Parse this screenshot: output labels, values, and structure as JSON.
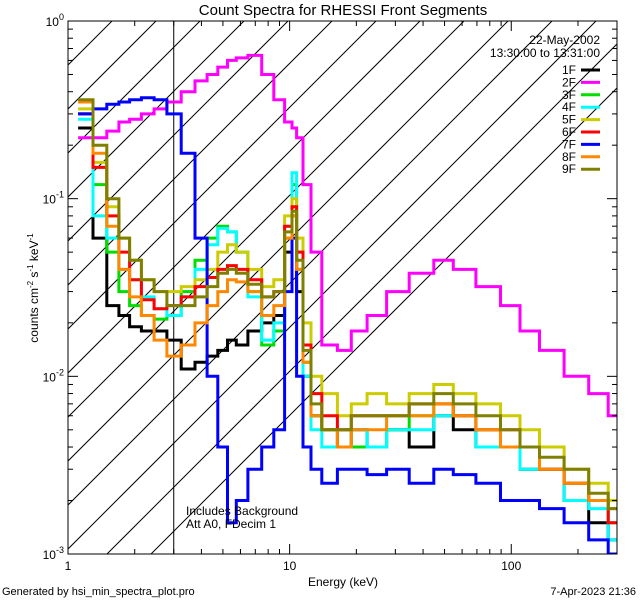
{
  "chart_data": {
    "type": "line",
    "title": "Count Spectra for RHESSI Front Segments",
    "xlabel": "Energy (keV)",
    "ylabel_parts": [
      "counts cm",
      "-2",
      " s",
      "-1",
      " keV",
      "-1"
    ],
    "xscale": "log",
    "yscale": "log",
    "xlim": [
      1,
      300
    ],
    "ylim": [
      0.001,
      1
    ],
    "x_ticks": [
      {
        "value": 1,
        "label": "1"
      },
      {
        "value": 10,
        "label": "10"
      },
      {
        "value": 100,
        "label": "100"
      }
    ],
    "y_ticks": [
      {
        "value": 1,
        "base": "10",
        "exp": "0"
      },
      {
        "value": 0.1,
        "base": "10",
        "exp": "-1"
      },
      {
        "value": 0.01,
        "base": "10",
        "exp": "-2"
      },
      {
        "value": 0.001,
        "base": "10",
        "exp": "-3"
      }
    ],
    "date": "22-May-2002",
    "time_range": "13:30:00 to 13:31:00",
    "attenuator_cutoff_keV": 3,
    "annotations": [
      "Includes Background",
      "Att A0, FDecim 1"
    ],
    "footer_left": "Generated by hsi_min_spectra_plot.pro",
    "footer_right": "7-Apr-2023 21:36",
    "series": [
      {
        "name": "1F",
        "color": "#000000",
        "x": [
          1.2,
          1.4,
          1.6,
          1.8,
          2.0,
          2.3,
          2.6,
          3.0,
          3.5,
          4.0,
          4.5,
          5.0,
          5.5,
          6.0,
          7.0,
          8.0,
          9.0,
          10.0,
          10.5,
          11.0,
          12.0,
          13.0,
          15.0,
          18.0,
          20.0,
          25.0,
          30.0,
          40.0,
          50.0,
          60.0,
          80.0,
          100.0,
          120.0,
          150.0,
          200.0,
          250.0,
          300.0
        ],
        "y": [
          0.25,
          0.06,
          0.025,
          0.022,
          0.019,
          0.018,
          0.018,
          0.016,
          0.011,
          0.012,
          0.013,
          0.014,
          0.016,
          0.015,
          0.018,
          0.02,
          0.022,
          0.05,
          0.08,
          0.03,
          0.01,
          0.006,
          0.005,
          0.004,
          0.005,
          0.004,
          0.005,
          0.004,
          0.006,
          0.005,
          0.004,
          0.004,
          0.003,
          0.003,
          0.002,
          0.0015,
          0.0012
        ]
      },
      {
        "name": "2F",
        "color": "#ff00ff",
        "x": [
          1.2,
          1.4,
          1.6,
          1.8,
          2.0,
          2.3,
          2.6,
          3.0,
          3.5,
          4.0,
          4.5,
          5.0,
          5.5,
          6.0,
          7.0,
          8.0,
          9.0,
          10.0,
          10.5,
          11.0,
          12.0,
          13.0,
          15.0,
          18.0,
          20.0,
          25.0,
          30.0,
          40.0,
          50.0,
          60.0,
          80.0,
          100.0,
          120.0,
          150.0,
          200.0,
          250.0,
          300.0
        ],
        "y": [
          0.22,
          0.22,
          0.24,
          0.27,
          0.28,
          0.3,
          0.32,
          0.35,
          0.4,
          0.46,
          0.5,
          0.55,
          0.6,
          0.62,
          0.64,
          0.5,
          0.36,
          0.27,
          0.25,
          0.22,
          0.12,
          0.05,
          0.015,
          0.014,
          0.018,
          0.022,
          0.03,
          0.038,
          0.045,
          0.04,
          0.032,
          0.025,
          0.018,
          0.014,
          0.01,
          0.008,
          0.006
        ]
      },
      {
        "name": "3F",
        "color": "#00dd00",
        "x": [
          1.2,
          1.4,
          1.6,
          1.8,
          2.0,
          2.3,
          2.6,
          3.0,
          3.5,
          4.0,
          4.5,
          5.0,
          5.5,
          6.0,
          7.0,
          8.0,
          9.0,
          10.0,
          10.5,
          11.0,
          12.0,
          13.0,
          15.0,
          18.0,
          20.0,
          25.0,
          30.0,
          40.0,
          50.0,
          60.0,
          80.0,
          100.0,
          120.0,
          150.0,
          200.0,
          250.0,
          300.0
        ],
        "y": [
          0.3,
          0.12,
          0.05,
          0.03,
          0.025,
          0.022,
          0.021,
          0.022,
          0.03,
          0.045,
          0.06,
          0.07,
          0.065,
          0.05,
          0.03,
          0.015,
          0.018,
          0.06,
          0.12,
          0.04,
          0.012,
          0.006,
          0.005,
          0.005,
          0.004,
          0.004,
          0.005,
          0.006,
          0.007,
          0.006,
          0.005,
          0.004,
          0.004,
          0.003,
          0.0025,
          0.002,
          0.0015
        ]
      },
      {
        "name": "4F",
        "color": "#00ffff",
        "x": [
          1.2,
          1.4,
          1.6,
          1.8,
          2.0,
          2.3,
          2.6,
          3.0,
          3.5,
          4.0,
          4.5,
          5.0,
          5.5,
          6.0,
          7.0,
          8.0,
          9.0,
          10.0,
          10.5,
          11.0,
          12.0,
          13.0,
          15.0,
          18.0,
          20.0,
          25.0,
          30.0,
          40.0,
          50.0,
          60.0,
          80.0,
          100.0,
          120.0,
          150.0,
          200.0,
          250.0,
          300.0
        ],
        "y": [
          0.28,
          0.08,
          0.06,
          0.04,
          0.035,
          0.028,
          0.024,
          0.022,
          0.028,
          0.04,
          0.055,
          0.068,
          0.065,
          0.05,
          0.028,
          0.016,
          0.02,
          0.07,
          0.14,
          0.05,
          0.01,
          0.005,
          0.004,
          0.004,
          0.005,
          0.004,
          0.005,
          0.005,
          0.006,
          0.006,
          0.004,
          0.004,
          0.003,
          0.003,
          0.002,
          0.0018,
          0.0012
        ]
      },
      {
        "name": "5F",
        "color": "#cccc00",
        "x": [
          1.2,
          1.4,
          1.6,
          1.8,
          2.0,
          2.3,
          2.6,
          3.0,
          3.5,
          4.0,
          4.5,
          5.0,
          5.5,
          6.0,
          7.0,
          8.0,
          9.0,
          10.0,
          10.5,
          11.0,
          12.0,
          13.0,
          15.0,
          18.0,
          20.0,
          25.0,
          30.0,
          40.0,
          50.0,
          60.0,
          80.0,
          100.0,
          120.0,
          150.0,
          200.0,
          250.0,
          300.0
        ],
        "y": [
          0.32,
          0.16,
          0.09,
          0.06,
          0.045,
          0.035,
          0.03,
          0.03,
          0.032,
          0.035,
          0.04,
          0.05,
          0.055,
          0.05,
          0.04,
          0.032,
          0.035,
          0.08,
          0.1,
          0.06,
          0.02,
          0.01,
          0.008,
          0.006,
          0.007,
          0.008,
          0.007,
          0.008,
          0.009,
          0.008,
          0.007,
          0.006,
          0.005,
          0.004,
          0.003,
          0.0025,
          0.002
        ]
      },
      {
        "name": "6F",
        "color": "#ff0000",
        "x": [
          1.2,
          1.4,
          1.6,
          1.8,
          2.0,
          2.3,
          2.6,
          3.0,
          3.5,
          4.0,
          4.5,
          5.0,
          5.5,
          6.0,
          7.0,
          8.0,
          9.0,
          10.0,
          10.5,
          11.0,
          12.0,
          13.0,
          15.0,
          18.0,
          20.0,
          25.0,
          30.0,
          40.0,
          50.0,
          60.0,
          80.0,
          100.0,
          120.0,
          150.0,
          200.0,
          250.0,
          300.0
        ],
        "y": [
          0.3,
          0.15,
          0.08,
          0.05,
          0.035,
          0.027,
          0.024,
          0.025,
          0.028,
          0.032,
          0.036,
          0.04,
          0.042,
          0.04,
          0.035,
          0.028,
          0.03,
          0.07,
          0.09,
          0.05,
          0.015,
          0.008,
          0.006,
          0.005,
          0.006,
          0.006,
          0.006,
          0.007,
          0.007,
          0.006,
          0.005,
          0.005,
          0.004,
          0.003,
          0.0025,
          0.002,
          0.0015
        ]
      },
      {
        "name": "7F",
        "color": "#0000ff",
        "x": [
          1.2,
          1.4,
          1.6,
          1.8,
          2.0,
          2.3,
          2.6,
          3.0,
          3.5,
          4.0,
          4.5,
          5.0,
          5.5,
          6.0,
          7.0,
          8.0,
          9.0,
          10.0,
          10.5,
          11.0,
          12.0,
          13.0,
          15.0,
          18.0,
          20.0,
          25.0,
          30.0,
          40.0,
          50.0,
          60.0,
          80.0,
          100.0,
          120.0,
          150.0,
          200.0,
          250.0,
          300.0
        ],
        "y": [
          0.3,
          0.32,
          0.34,
          0.35,
          0.36,
          0.37,
          0.36,
          0.3,
          0.18,
          0.06,
          0.01,
          0.004,
          0.0015,
          0.002,
          0.003,
          0.004,
          0.005,
          0.03,
          0.06,
          0.01,
          0.004,
          0.003,
          0.0025,
          0.003,
          0.003,
          0.0028,
          0.003,
          0.0025,
          0.003,
          0.0028,
          0.0025,
          0.002,
          0.002,
          0.0018,
          0.0015,
          0.0012,
          0.001
        ]
      },
      {
        "name": "8F",
        "color": "#ff8800",
        "x": [
          1.2,
          1.4,
          1.6,
          1.8,
          2.0,
          2.3,
          2.6,
          3.0,
          3.5,
          4.0,
          4.5,
          5.0,
          5.5,
          6.0,
          7.0,
          8.0,
          9.0,
          10.0,
          10.5,
          11.0,
          12.0,
          13.0,
          15.0,
          18.0,
          20.0,
          25.0,
          30.0,
          40.0,
          50.0,
          60.0,
          80.0,
          100.0,
          120.0,
          150.0,
          200.0,
          250.0,
          300.0
        ],
        "y": [
          0.35,
          0.18,
          0.07,
          0.04,
          0.028,
          0.022,
          0.016,
          0.013,
          0.015,
          0.02,
          0.025,
          0.03,
          0.035,
          0.034,
          0.03,
          0.022,
          0.025,
          0.06,
          0.08,
          0.04,
          0.012,
          0.006,
          0.005,
          0.004,
          0.005,
          0.005,
          0.006,
          0.006,
          0.007,
          0.006,
          0.005,
          0.004,
          0.004,
          0.003,
          0.0025,
          0.002,
          0.0018
        ]
      },
      {
        "name": "9F",
        "color": "#808000",
        "x": [
          1.2,
          1.4,
          1.6,
          1.8,
          2.0,
          2.3,
          2.6,
          3.0,
          3.5,
          4.0,
          4.5,
          5.0,
          5.5,
          6.0,
          7.0,
          8.0,
          9.0,
          10.0,
          10.5,
          11.0,
          12.0,
          13.0,
          15.0,
          18.0,
          20.0,
          25.0,
          30.0,
          40.0,
          50.0,
          60.0,
          80.0,
          100.0,
          120.0,
          150.0,
          200.0,
          250.0,
          300.0
        ],
        "y": [
          0.36,
          0.2,
          0.1,
          0.06,
          0.045,
          0.035,
          0.03,
          0.025,
          0.025,
          0.028,
          0.032,
          0.038,
          0.04,
          0.038,
          0.033,
          0.028,
          0.03,
          0.065,
          0.085,
          0.045,
          0.014,
          0.007,
          0.005,
          0.005,
          0.006,
          0.006,
          0.006,
          0.007,
          0.008,
          0.007,
          0.006,
          0.005,
          0.004,
          0.0035,
          0.003,
          0.0022,
          0.0018
        ]
      }
    ]
  }
}
